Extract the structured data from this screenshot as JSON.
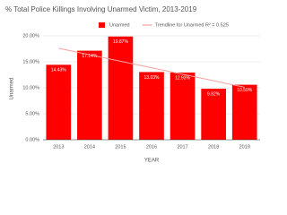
{
  "chart_data": {
    "type": "bar",
    "title": "% Total Police Killings Involving Unarmed Victim, 2013-2019",
    "categories": [
      "2013",
      "2014",
      "2015",
      "2016",
      "2017",
      "2018",
      "2019"
    ],
    "series": [
      {
        "name": "Unarmed",
        "type": "bar",
        "color": "#ff0000",
        "values": [
          14.43,
          17.14,
          19.87,
          13.03,
          12.93,
          9.82,
          10.59
        ],
        "value_labels": [
          "14.43%",
          "17.14%",
          "19.87%",
          "13.03%",
          "12.93%",
          "9.82%",
          "10.59%"
        ]
      },
      {
        "name": "Trendline for Unarmed R² = 0.525",
        "type": "line",
        "color": "#f4a0a0",
        "values": [
          17.6,
          16.35,
          15.1,
          13.85,
          12.6,
          11.35,
          10.1
        ]
      }
    ],
    "ylabel": "Unarmed",
    "xlabel": "YEAR",
    "ylim": [
      0,
      20
    ],
    "yticks": [
      {
        "value": 0,
        "label": "0.00%"
      },
      {
        "value": 5,
        "label": "5.00%"
      },
      {
        "value": 10,
        "label": "10.00%"
      },
      {
        "value": 15,
        "label": "15.00%"
      },
      {
        "value": 20,
        "label": "20.00%"
      }
    ],
    "grid": true
  }
}
